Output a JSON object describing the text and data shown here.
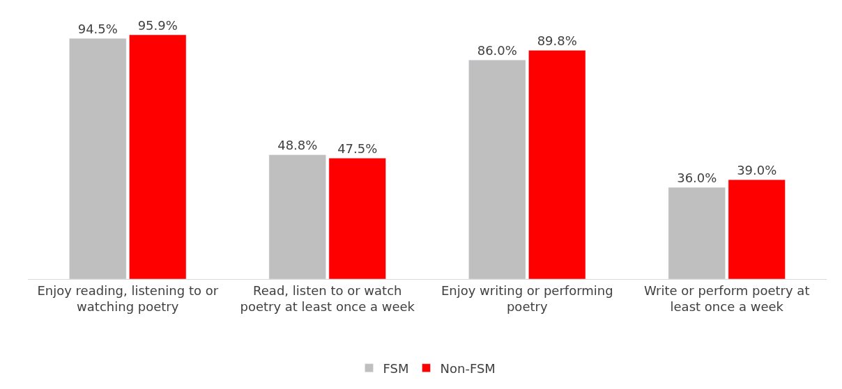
{
  "chart_data": {
    "type": "bar",
    "categories": [
      "Enjoy reading, listening to or watching poetry",
      "Read, listen to or watch poetry at least once a week",
      "Enjoy writing or performing poetry",
      "Write or perform poetry at least once a week"
    ],
    "series": [
      {
        "name": "FSM",
        "color": "#bfbfbf",
        "values": [
          94.5,
          48.8,
          86.0,
          36.0
        ],
        "value_labels": [
          "94.5%",
          "48.8%",
          "86.0%",
          "36.0%"
        ]
      },
      {
        "name": "Non-FSM",
        "color": "#ff0000",
        "values": [
          95.9,
          47.5,
          89.8,
          39.0
        ],
        "value_labels": [
          "95.9%",
          "47.5%",
          "89.8%",
          "39.0%"
        ]
      }
    ],
    "legend": "bottom"
  }
}
